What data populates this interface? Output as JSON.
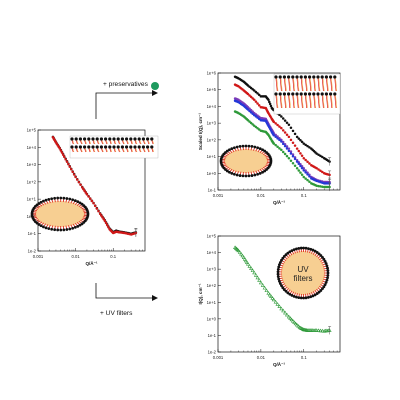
{
  "annotations": {
    "preservatives_label": "+ preservatives",
    "uv_label": "+ UV filters",
    "uv_vesicle_line1": "UV",
    "uv_vesicle_line2": "filters"
  },
  "colors": {
    "black_markers": "#111111",
    "red_markers": "#d01818",
    "blue_markers": "#2438d8",
    "purple_markers": "#7c3ab8",
    "green_markers": "#2f9a3a",
    "preservative_dot": "#1e9a5e",
    "vesicle_core": "#f7cf92"
  },
  "chart_data": [
    {
      "type": "scatter",
      "title": "",
      "xlabel": "Q/Å⁻¹",
      "ylabel": "",
      "x_scale": "log",
      "y_scale": "log",
      "xlim": [
        0.001,
        0.7
      ],
      "ylim": [
        0.01,
        100000
      ],
      "x_ticks": [
        "0.001",
        "0.01",
        "0.1"
      ],
      "y_ticks": [
        "1e-2",
        "1e-1",
        "1e+0",
        "1e+1",
        "1e+2",
        "1e+3",
        "1e+4",
        "1e+5"
      ],
      "series": [
        {
          "color": "#111111",
          "marker": "circle",
          "x": [
            0.0025,
            0.003,
            0.0038,
            0.005,
            0.007,
            0.01,
            0.015,
            0.02,
            0.03,
            0.045,
            0.06,
            0.08,
            0.1,
            0.12,
            0.15,
            0.2,
            0.3,
            0.4
          ],
          "y": [
            40000,
            20000,
            9000,
            3000,
            800,
            200,
            50,
            20,
            6,
            1.5,
            0.6,
            0.2,
            0.12,
            0.15,
            0.13,
            0.12,
            0.1,
            0.12
          ]
        },
        {
          "color": "#d01818",
          "marker": "circle",
          "x": [
            0.0025,
            0.003,
            0.0038,
            0.005,
            0.007,
            0.01,
            0.015,
            0.02,
            0.03,
            0.045,
            0.06,
            0.08,
            0.1,
            0.12,
            0.15,
            0.2,
            0.3,
            0.4
          ],
          "y": [
            38000,
            19000,
            8500,
            2800,
            750,
            190,
            48,
            19,
            5.8,
            1.4,
            0.55,
            0.18,
            0.11,
            0.13,
            0.12,
            0.11,
            0.09,
            0.11
          ]
        }
      ]
    },
    {
      "type": "scatter",
      "title": "",
      "xlabel": "Q/Å⁻¹",
      "ylabel": "Scaled I(Q), cm⁻¹",
      "x_scale": "log",
      "y_scale": "log",
      "xlim": [
        0.001,
        0.7
      ],
      "ylim": [
        0.1,
        1000000
      ],
      "x_ticks": [
        "0.001",
        "0.01",
        "0.1"
      ],
      "y_ticks": [
        "1e-1",
        "1e+0",
        "1e+1",
        "1e+2",
        "1e+3",
        "1e+4",
        "1e+5",
        "1e+6"
      ],
      "series": [
        {
          "color": "#111111",
          "marker": "circle",
          "x": [
            0.0025,
            0.003,
            0.004,
            0.005,
            0.007,
            0.01,
            0.013,
            0.015,
            0.018,
            0.02,
            0.03,
            0.045,
            0.07,
            0.1,
            0.15,
            0.2,
            0.3,
            0.4
          ],
          "y": [
            600000,
            480000,
            300000,
            180000,
            90000,
            40000,
            40000,
            25000,
            8000,
            6000,
            2500,
            800,
            150,
            60,
            30,
            15,
            8,
            5
          ]
        },
        {
          "color": "#d01818",
          "marker": "circle",
          "x": [
            0.0025,
            0.003,
            0.004,
            0.005,
            0.007,
            0.01,
            0.013,
            0.015,
            0.018,
            0.02,
            0.03,
            0.045,
            0.07,
            0.1,
            0.15,
            0.2,
            0.3,
            0.4
          ],
          "y": [
            200000,
            160000,
            90000,
            55000,
            25000,
            9000,
            8000,
            4000,
            1800,
            1200,
            500,
            150,
            30,
            8,
            3,
            2,
            1,
            0.8
          ]
        },
        {
          "color": "#7c3ab8",
          "marker": "circle",
          "x": [
            0.0025,
            0.003,
            0.004,
            0.005,
            0.007,
            0.01,
            0.013,
            0.015,
            0.018,
            0.02,
            0.03,
            0.045,
            0.07,
            0.1,
            0.15,
            0.2,
            0.3,
            0.4
          ],
          "y": [
            30000,
            25000,
            15000,
            9000,
            4000,
            2000,
            1800,
            900,
            400,
            250,
            100,
            30,
            6,
            2,
            0.6,
            0.4,
            0.3,
            0.3
          ]
        },
        {
          "color": "#2438d8",
          "marker": "circle",
          "x": [
            0.0025,
            0.003,
            0.004,
            0.005,
            0.007,
            0.01,
            0.013,
            0.015,
            0.018,
            0.02,
            0.03,
            0.045,
            0.07,
            0.1,
            0.15,
            0.2,
            0.3,
            0.4
          ],
          "y": [
            22000,
            18000,
            11000,
            6500,
            3000,
            1500,
            1400,
            700,
            300,
            190,
            80,
            22,
            5,
            1.5,
            0.5,
            0.35,
            0.25,
            0.25
          ]
        },
        {
          "color": "#2f9a3a",
          "marker": "circle",
          "x": [
            0.0025,
            0.003,
            0.004,
            0.005,
            0.007,
            0.01,
            0.013,
            0.015,
            0.018,
            0.02,
            0.03,
            0.045,
            0.07,
            0.1,
            0.15,
            0.2,
            0.3,
            0.4
          ],
          "y": [
            5000,
            4000,
            2500,
            1500,
            700,
            350,
            300,
            200,
            90,
            60,
            25,
            8,
            2,
            0.6,
            0.25,
            0.18,
            0.15,
            0.15
          ]
        }
      ]
    },
    {
      "type": "scatter",
      "title": "",
      "xlabel": "Q/Å⁻¹",
      "ylabel": "I(Q), cm⁻¹",
      "x_scale": "log",
      "y_scale": "log",
      "xlim": [
        0.001,
        0.7
      ],
      "ylim": [
        0.01,
        100000
      ],
      "x_ticks": [
        "0.001",
        "0.01",
        "0.1"
      ],
      "y_ticks": [
        "1e-2",
        "1e-1",
        "1e+0",
        "1e+1",
        "1e+2",
        "1e+3",
        "1e+4",
        "1e+5"
      ],
      "series": [
        {
          "color": "#2f9a3a",
          "marker": "triangle",
          "x": [
            0.0025,
            0.003,
            0.004,
            0.005,
            0.007,
            0.01,
            0.015,
            0.02,
            0.03,
            0.045,
            0.06,
            0.08,
            0.1,
            0.12,
            0.15,
            0.2,
            0.3,
            0.4
          ],
          "y": [
            20000,
            13000,
            5000,
            2000,
            600,
            150,
            35,
            14,
            4,
            1.3,
            0.6,
            0.3,
            0.22,
            0.2,
            0.2,
            0.2,
            0.18,
            0.2
          ]
        }
      ]
    }
  ]
}
